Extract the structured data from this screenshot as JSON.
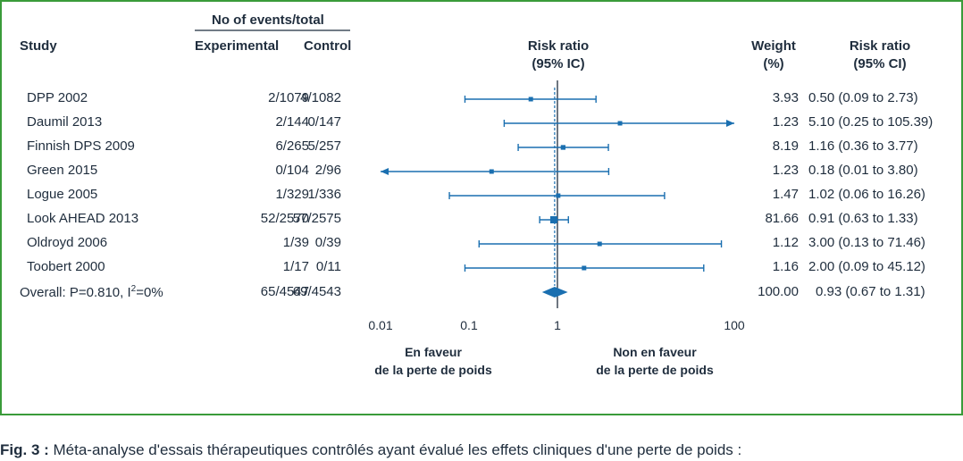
{
  "headers": {
    "events_total": "No of events/total",
    "study": "Study",
    "experimental": "Experimental",
    "control": "Control",
    "rr_plot_line1": "Risk ratio",
    "rr_plot_line2": "(95% IC)",
    "weight_line1": "Weight",
    "weight_line2": "(%)",
    "rr_col_line1": "Risk ratio",
    "rr_col_line2": "(95% CI)"
  },
  "overall_label_prefix": "Overall: P=0.810, I",
  "overall_label_sup": "2",
  "overall_label_suffix": "=0%",
  "direction": {
    "left_line1": "En faveur",
    "left_line2": "de la perte de poids",
    "right_line1": "Non en faveur",
    "right_line2": "de la perte de poids"
  },
  "caption": {
    "label": "Fig. 3 :",
    "text": " Méta-analyse d'essais thérapeutiques contrôlés ayant évalué les effets cliniques d'une perte de poids :"
  },
  "colors": {
    "accent": "#1a6fb0",
    "frame": "#3a9b3a",
    "text": "#1f2d3d"
  },
  "chart_data": {
    "type": "forest",
    "x_scale": "log",
    "xlim": [
      0.01,
      100
    ],
    "x_ticks": [
      0.01,
      0.1,
      1,
      100
    ],
    "x_tick_labels": [
      "0.01",
      "0.1",
      "1",
      "100"
    ],
    "reference_line": 1,
    "studies": [
      {
        "name": "DPP 2002",
        "experimental": "2/1079",
        "control": "4/1082",
        "weight": "3.93",
        "rr_text": "0.50 (0.09 to 2.73)",
        "rr": 0.5,
        "lo": 0.09,
        "hi": 2.73
      },
      {
        "name": "Daumil 2013",
        "experimental": "2/144",
        "control": "0/147",
        "weight": "1.23",
        "rr_text": "5.10 (0.25 to 105.39)",
        "rr": 5.1,
        "lo": 0.25,
        "hi": 105.39
      },
      {
        "name": "Finnish DPS 2009",
        "experimental": "6/265",
        "control": "5/257",
        "weight": "8.19",
        "rr_text": "1.16 (0.36 to 3.77)",
        "rr": 1.16,
        "lo": 0.36,
        "hi": 3.77
      },
      {
        "name": "Green 2015",
        "experimental": "0/104",
        "control": "2/96",
        "weight": "1.23",
        "rr_text": "0.18 (0.01 to 3.80)",
        "rr": 0.18,
        "lo": 0.01,
        "hi": 3.8
      },
      {
        "name": "Logue 2005",
        "experimental": "1/329",
        "control": "1/336",
        "weight": "1.47",
        "rr_text": "1.02 (0.06 to 16.26)",
        "rr": 1.02,
        "lo": 0.06,
        "hi": 16.26
      },
      {
        "name": "Look AHEAD 2013",
        "experimental": "52/2570",
        "control": "57/2575",
        "weight": "81.66",
        "rr_text": "0.91 (0.63 to 1.33)",
        "rr": 0.91,
        "lo": 0.63,
        "hi": 1.33
      },
      {
        "name": "Oldroyd 2006",
        "experimental": "1/39",
        "control": "0/39",
        "weight": "1.12",
        "rr_text": "3.00 (0.13 to 71.46)",
        "rr": 3.0,
        "lo": 0.13,
        "hi": 71.46
      },
      {
        "name": "Toobert 2000",
        "experimental": "1/17",
        "control": "0/11",
        "weight": "1.16",
        "rr_text": "2.00 (0.09 to 45.12)",
        "rr": 2.0,
        "lo": 0.09,
        "hi": 45.12
      }
    ],
    "overall": {
      "experimental": "65/4547",
      "control": "69/4543",
      "weight": "100.00",
      "rr_text": "0.93 (0.67 to 1.31)",
      "rr": 0.93,
      "lo": 0.67,
      "hi": 1.31
    }
  }
}
